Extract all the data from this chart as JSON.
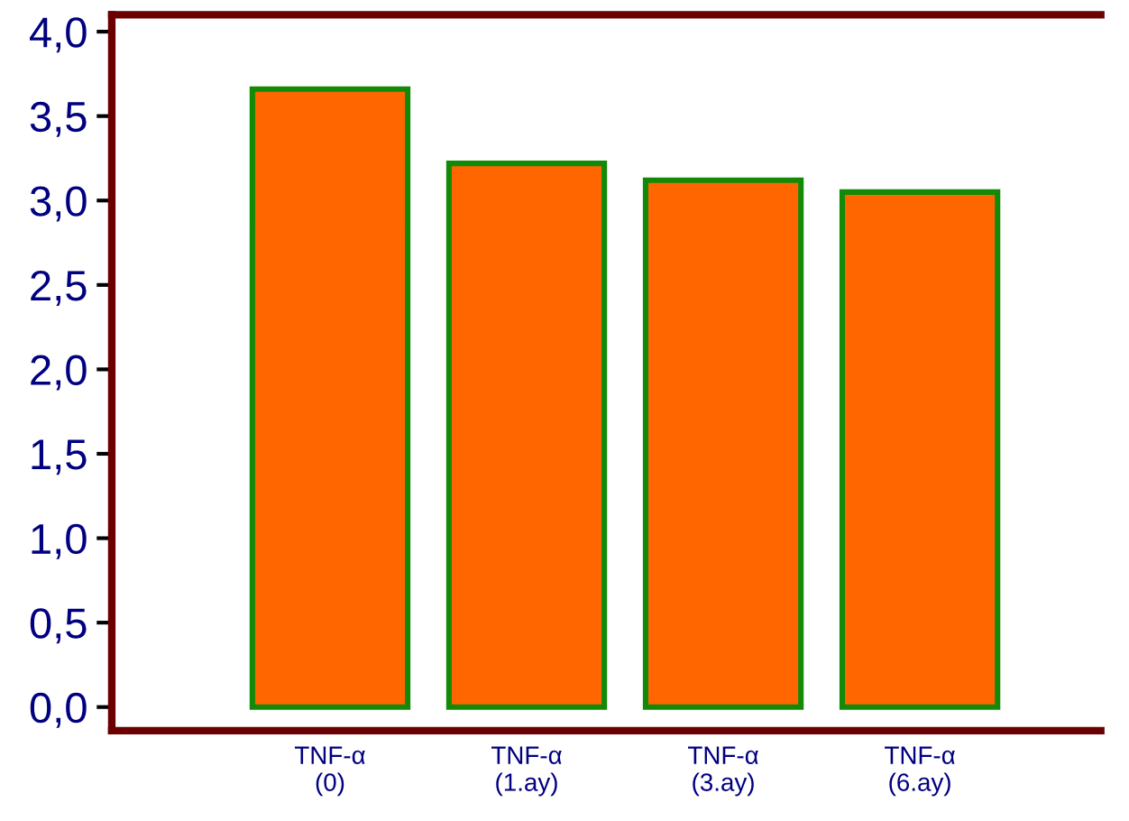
{
  "chart_data": {
    "type": "bar",
    "categories": [
      "TNF-α\n(0)",
      "TNF-α\n(1.ay)",
      "TNF-α\n(3.ay)",
      "TNF-α\n(6.ay)"
    ],
    "values": [
      3.66,
      3.22,
      3.12,
      3.05
    ],
    "color": "#ff6600",
    "ylim": [
      -0.14,
      4.1
    ],
    "yticks": [
      {
        "value": 0,
        "label": "0,0"
      },
      {
        "value": 0.5,
        "label": "0,5"
      },
      {
        "value": 1,
        "label": "1,0"
      },
      {
        "value": 1.5,
        "label": "1,5"
      },
      {
        "value": 2,
        "label": "2,0"
      },
      {
        "value": 2.5,
        "label": "2,5"
      },
      {
        "value": 3,
        "label": "3,0"
      },
      {
        "value": 3.5,
        "label": "3,5"
      },
      {
        "value": 4,
        "label": "4,0"
      }
    ],
    "grid": false,
    "legend": false
  }
}
